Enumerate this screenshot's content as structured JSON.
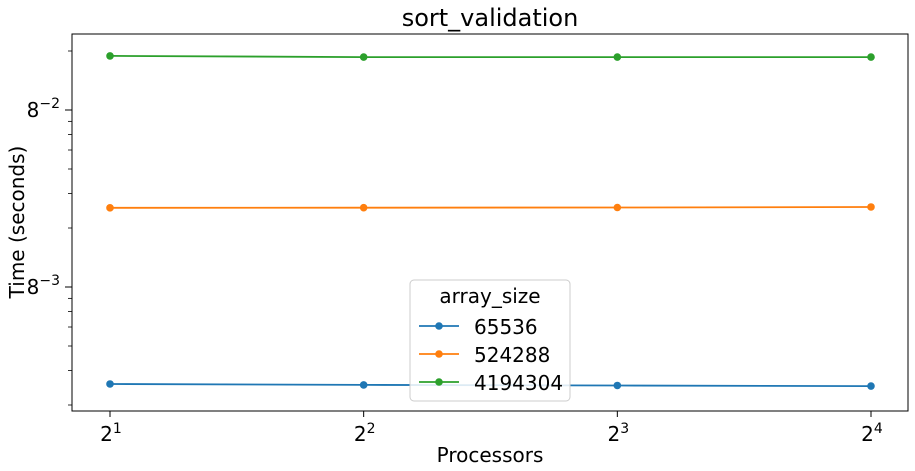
{
  "chart_data": {
    "type": "line",
    "title": "sort_validation",
    "xlabel": "Processors",
    "ylabel": "Time (seconds)",
    "x_scale": "log2",
    "y_scale": "log",
    "x": [
      2,
      4,
      8,
      16
    ],
    "x_tick_labels": [
      {
        "base": "2",
        "exp": "1"
      },
      {
        "base": "2",
        "exp": "2"
      },
      {
        "base": "2",
        "exp": "3"
      },
      {
        "base": "2",
        "exp": "4"
      }
    ],
    "y_tick_labels": [
      {
        "base": "8",
        "exp": "−2"
      },
      {
        "base": "8",
        "exp": "−3"
      }
    ],
    "legend": {
      "title": "array_size",
      "placement": "lower-center"
    },
    "series": [
      {
        "name": "65536",
        "color": "#1f77b4",
        "values": [
          0.000625,
          0.000618,
          0.000614,
          0.00061
        ]
      },
      {
        "name": "524288",
        "color": "#ff7f0e",
        "values": [
          0.00495,
          0.00496,
          0.00497,
          0.005
        ]
      },
      {
        "name": "4194304",
        "color": "#2ca02c",
        "values": [
          0.0295,
          0.0291,
          0.0291,
          0.0291
        ]
      }
    ],
    "grid": false
  }
}
